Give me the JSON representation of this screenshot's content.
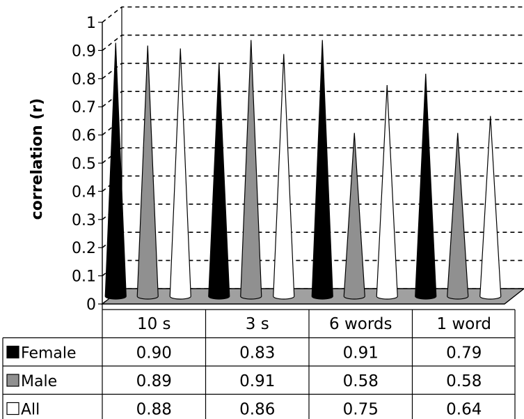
{
  "chart_data": {
    "type": "bar",
    "style": "3d-cone",
    "ylabel": "correlation (r)",
    "ylim": [
      0,
      1
    ],
    "yticks": [
      "0",
      "0.1",
      "0.2",
      "0.3",
      "0.4",
      "0.5",
      "0.6",
      "0.7",
      "0.8",
      "0.9",
      "1"
    ],
    "grid": true,
    "categories": [
      "10 s",
      "3 s",
      "6 words",
      "1 word"
    ],
    "series": [
      {
        "name": "Female",
        "color": "#000000",
        "values": [
          0.9,
          0.83,
          0.91,
          0.79
        ],
        "labels": [
          "0.90",
          "0.83",
          "0.91",
          "0.79"
        ]
      },
      {
        "name": "Male",
        "color": "#909090",
        "values": [
          0.89,
          0.91,
          0.58,
          0.58
        ],
        "labels": [
          "0.89",
          "0.91",
          "0.58",
          "0.58"
        ]
      },
      {
        "name": "All",
        "color": "#ffffff",
        "values": [
          0.88,
          0.86,
          0.75,
          0.64
        ],
        "labels": [
          "0.88",
          "0.86",
          "0.75",
          "0.64"
        ]
      }
    ],
    "data_table": true
  }
}
